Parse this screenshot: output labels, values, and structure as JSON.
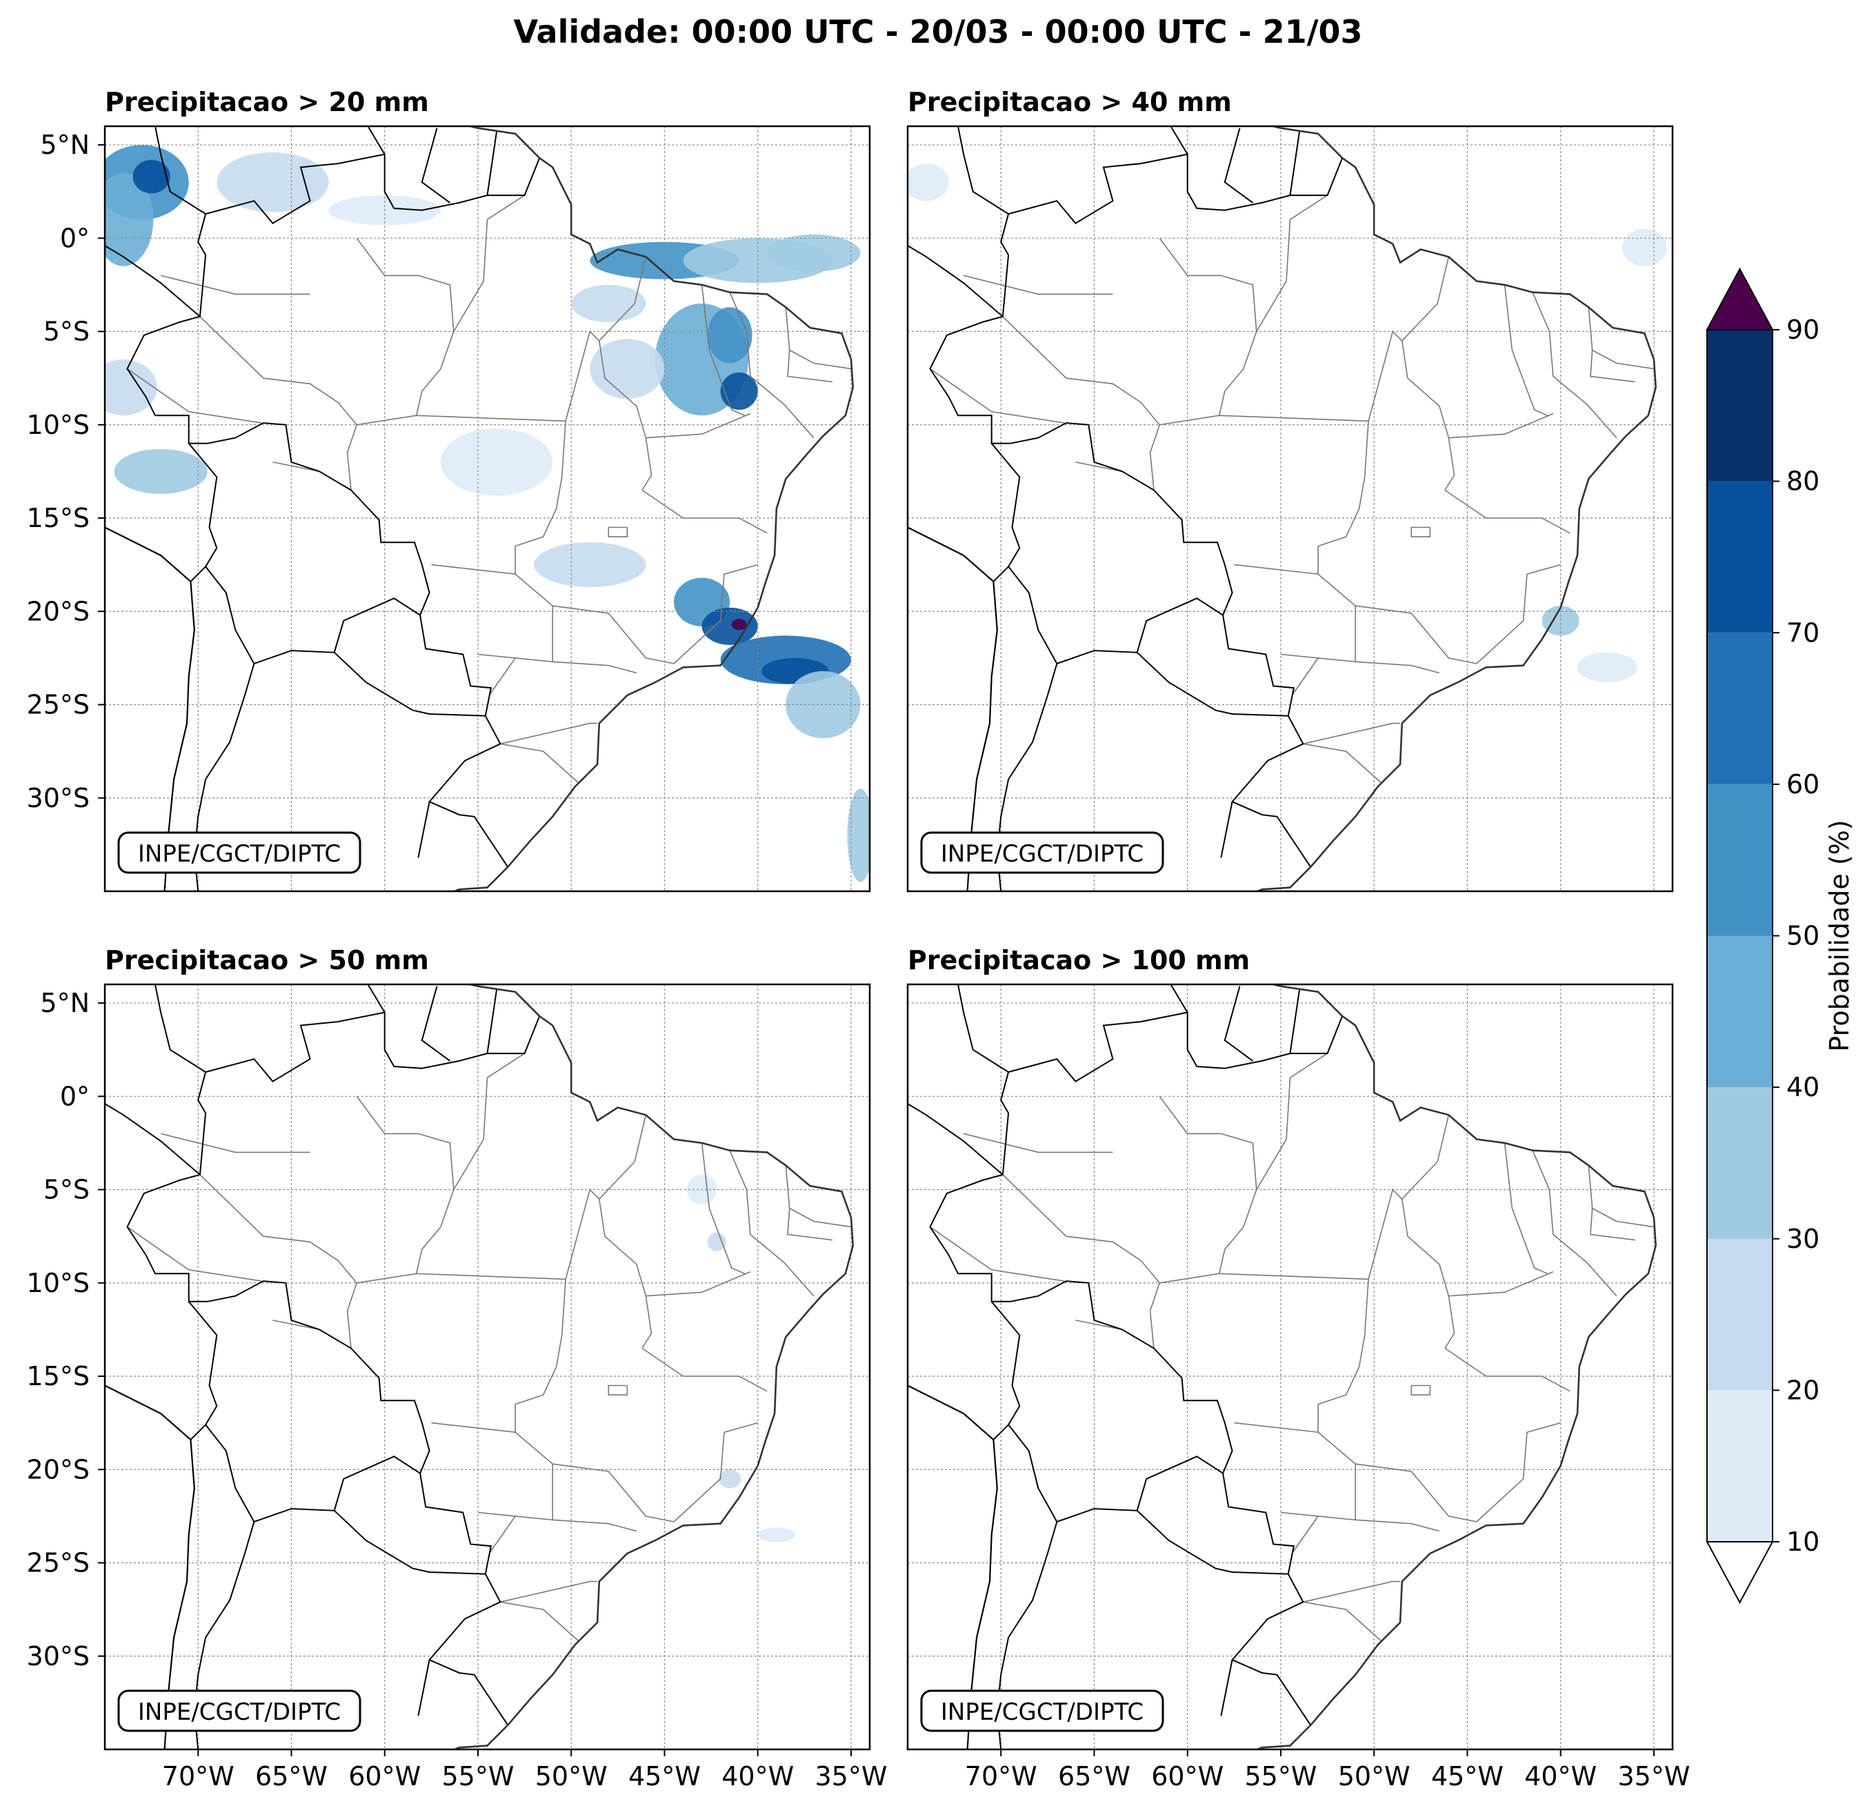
{
  "figure": {
    "title": "Validade: 00:00 UTC - 20/03 - 00:00 UTC - 21/03",
    "watermark": "INPE/CGCT/DIPTC"
  },
  "panels": [
    {
      "id": "p20",
      "title": "Precipitacao > 20 mm",
      "threshold_mm": 20
    },
    {
      "id": "p40",
      "title": "Precipitacao > 40 mm",
      "threshold_mm": 40
    },
    {
      "id": "p50",
      "title": "Precipitacao > 50 mm",
      "threshold_mm": 50
    },
    {
      "id": "p100",
      "title": "Precipitacao > 100 mm",
      "threshold_mm": 100
    }
  ],
  "axes": {
    "lat_labels": [
      "5°N",
      "0°",
      "5°S",
      "10°S",
      "15°S",
      "20°S",
      "25°S",
      "30°S"
    ],
    "lat_values": [
      5,
      0,
      -5,
      -10,
      -15,
      -20,
      -25,
      -30
    ],
    "lon_labels": [
      "70°W",
      "65°W",
      "60°W",
      "55°W",
      "50°W",
      "45°W",
      "40°W",
      "35°W"
    ],
    "lon_values": [
      -70,
      -65,
      -60,
      -55,
      -50,
      -45,
      -40,
      -35
    ],
    "lon_range": [
      -75,
      -34
    ],
    "lat_range": [
      -35,
      6
    ]
  },
  "colorbar": {
    "label": "Probabilidade (%)",
    "ticks": [
      "10",
      "20",
      "30",
      "40",
      "50",
      "60",
      "70",
      "80",
      "90"
    ],
    "colors": [
      "#deebf7",
      "#c6dbef",
      "#9ecae1",
      "#6baed6",
      "#4292c6",
      "#2171b5",
      "#08519c",
      "#08306b"
    ],
    "over_color": "#4d004b",
    "under_color": "#ffffff"
  },
  "precip_blobs": {
    "p20": [
      {
        "lon": -73,
        "lat": 3,
        "rx": 2.5,
        "ry": 2.0,
        "prob": 55
      },
      {
        "lon": -74,
        "lat": 1,
        "rx": 1.6,
        "ry": 2.5,
        "prob": 45
      },
      {
        "lon": -72.5,
        "lat": 3.3,
        "rx": 1.0,
        "ry": 0.9,
        "prob": 75
      },
      {
        "lon": -66,
        "lat": 3,
        "rx": 3.0,
        "ry": 1.6,
        "prob": 25
      },
      {
        "lon": -60,
        "lat": 1.5,
        "rx": 3.0,
        "ry": 0.8,
        "prob": 15
      },
      {
        "lon": -45,
        "lat": -1.2,
        "rx": 4.0,
        "ry": 1.0,
        "prob": 50
      },
      {
        "lon": -40,
        "lat": -1.2,
        "rx": 4.0,
        "ry": 1.2,
        "prob": 35
      },
      {
        "lon": -37,
        "lat": -0.8,
        "rx": 2.5,
        "ry": 1.0,
        "prob": 30
      },
      {
        "lon": -48,
        "lat": -3.5,
        "rx": 2.0,
        "ry": 1.0,
        "prob": 20
      },
      {
        "lon": -43,
        "lat": -6.5,
        "rx": 2.5,
        "ry": 3.0,
        "prob": 40
      },
      {
        "lon": -41.5,
        "lat": -5.2,
        "rx": 1.2,
        "ry": 1.5,
        "prob": 55
      },
      {
        "lon": -41,
        "lat": -8.2,
        "rx": 1.0,
        "ry": 1.0,
        "prob": 75
      },
      {
        "lon": -47,
        "lat": -7.0,
        "rx": 2.0,
        "ry": 1.6,
        "prob": 25
      },
      {
        "lon": -74,
        "lat": -8,
        "rx": 1.8,
        "ry": 1.5,
        "prob": 25
      },
      {
        "lon": -72,
        "lat": -12.5,
        "rx": 2.5,
        "ry": 1.2,
        "prob": 30
      },
      {
        "lon": -54,
        "lat": -12,
        "rx": 3.0,
        "ry": 1.8,
        "prob": 15
      },
      {
        "lon": -49,
        "lat": -17.5,
        "rx": 3.0,
        "ry": 1.2,
        "prob": 20
      },
      {
        "lon": -43,
        "lat": -19.5,
        "rx": 1.5,
        "ry": 1.3,
        "prob": 55
      },
      {
        "lon": -41.5,
        "lat": -20.8,
        "rx": 1.5,
        "ry": 1.0,
        "prob": 70
      },
      {
        "lon": -41.0,
        "lat": -20.7,
        "rx": 0.4,
        "ry": 0.3,
        "prob": 95
      },
      {
        "lon": -38.5,
        "lat": -22.6,
        "rx": 3.5,
        "ry": 1.3,
        "prob": 60
      },
      {
        "lon": -38,
        "lat": -23.2,
        "rx": 1.8,
        "ry": 0.7,
        "prob": 75
      },
      {
        "lon": -36.5,
        "lat": -25,
        "rx": 2.0,
        "ry": 1.8,
        "prob": 30
      },
      {
        "lon": -34.5,
        "lat": -32,
        "rx": 0.7,
        "ry": 2.5,
        "prob": 35
      }
    ],
    "p40": [
      {
        "lon": -74,
        "lat": 3,
        "rx": 1.2,
        "ry": 1.0,
        "prob": 15
      },
      {
        "lon": -35.5,
        "lat": -0.5,
        "rx": 1.2,
        "ry": 1.0,
        "prob": 15
      },
      {
        "lon": -40,
        "lat": -20.5,
        "rx": 1.0,
        "ry": 0.8,
        "prob": 30
      },
      {
        "lon": -37.5,
        "lat": -23,
        "rx": 1.6,
        "ry": 0.8,
        "prob": 15
      }
    ],
    "p50": [
      {
        "lon": -43,
        "lat": -5,
        "rx": 0.8,
        "ry": 0.8,
        "prob": 15
      },
      {
        "lon": -42.2,
        "lat": -7.8,
        "rx": 0.5,
        "ry": 0.5,
        "prob": 20
      },
      {
        "lon": -41.5,
        "lat": -20.5,
        "rx": 0.6,
        "ry": 0.5,
        "prob": 20
      },
      {
        "lon": -39,
        "lat": -23.5,
        "rx": 1.0,
        "ry": 0.4,
        "prob": 15
      }
    ],
    "p100": []
  }
}
